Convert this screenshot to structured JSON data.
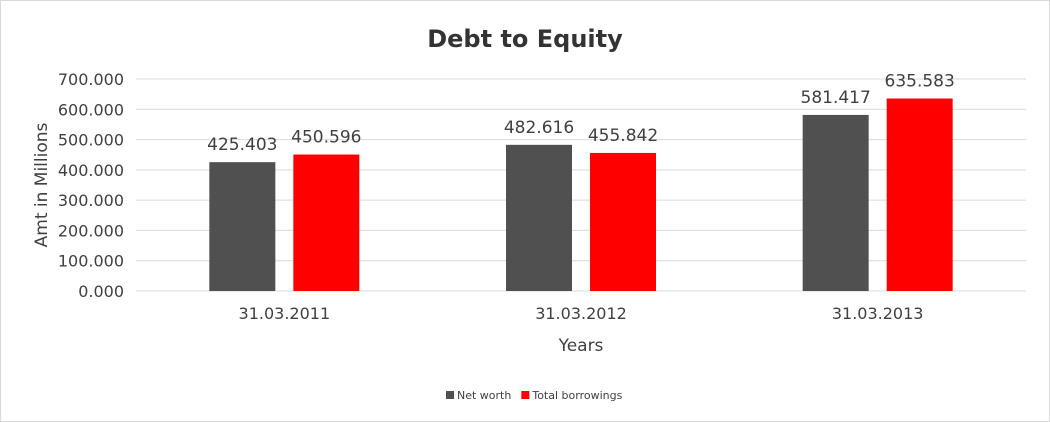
{
  "chart_data": {
    "type": "bar",
    "title": "Debt to Equity",
    "xlabel": "Years",
    "ylabel": "Amt in Millions",
    "categories": [
      "31.03.2011",
      "31.03.2012",
      "31.03.2013"
    ],
    "series": [
      {
        "name": "Net worth",
        "values": [
          425.403,
          482.616,
          581.417
        ],
        "color": "#505050"
      },
      {
        "name": "Total borrowings",
        "values": [
          450.596,
          455.842,
          635.583
        ],
        "color": "#ff0000"
      }
    ],
    "data_labels": [
      [
        "425.403",
        "482.616",
        "581.417"
      ],
      [
        "450.596",
        "455.842",
        "635.583"
      ]
    ],
    "yticks": [
      "0.000",
      "100.000",
      "200.000",
      "300.000",
      "400.000",
      "500.000",
      "600.000",
      "700.000"
    ],
    "ylim": [
      0,
      700
    ],
    "grid": true,
    "legend": "bottom"
  }
}
